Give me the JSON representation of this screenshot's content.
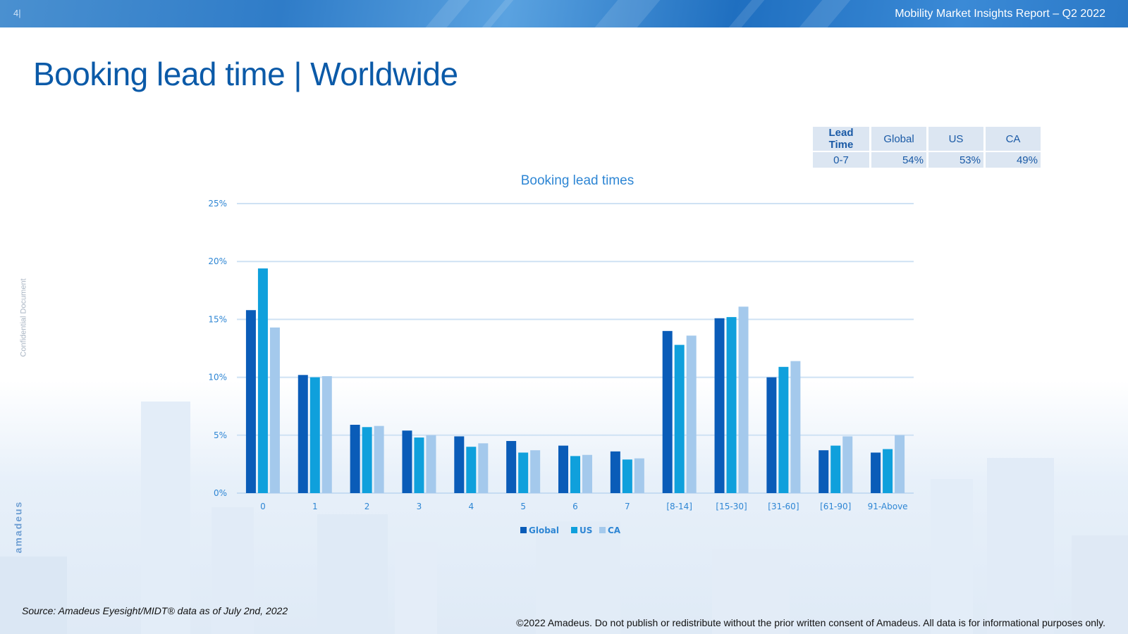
{
  "header": {
    "page_number": "4|",
    "report_title": "Mobility Market Insights Report – Q2 2022"
  },
  "slide_title": "Booking lead time | Worldwide",
  "side_label": "Confidential Document",
  "logo_text": "amadeus",
  "summary_table": {
    "headers": [
      "Lead Time",
      "Global",
      "US",
      "CA"
    ],
    "row": [
      "0-7",
      "54%",
      "53%",
      "49%"
    ]
  },
  "chart_data": {
    "type": "bar",
    "title": "Booking lead times",
    "categories": [
      "0",
      "1",
      "2",
      "3",
      "4",
      "5",
      "6",
      "7",
      "[8-14]",
      "[15-30]",
      "[31-60]",
      "[61-90]",
      "91-Above"
    ],
    "series": [
      {
        "name": "Global",
        "color": "#0a5cb8",
        "values": [
          15.8,
          10.2,
          5.9,
          5.4,
          4.9,
          4.5,
          4.1,
          3.6,
          14.0,
          15.1,
          10.0,
          3.7,
          3.5
        ]
      },
      {
        "name": "US",
        "color": "#0fa0dc",
        "values": [
          19.4,
          10.0,
          5.7,
          4.8,
          4.0,
          3.5,
          3.2,
          2.9,
          12.8,
          15.2,
          10.9,
          4.1,
          3.8
        ]
      },
      {
        "name": "CA",
        "color": "#a4c9ec",
        "values": [
          14.3,
          10.1,
          5.8,
          5.0,
          4.3,
          3.7,
          3.3,
          3.0,
          13.6,
          16.1,
          11.4,
          4.9,
          5.0
        ]
      }
    ],
    "ylim": [
      0,
      25
    ],
    "yticks": [
      "0%",
      "5%",
      "10%",
      "15%",
      "20%",
      "25%"
    ],
    "ytick_values": [
      0,
      5,
      10,
      15,
      20,
      25
    ],
    "xlabel": "",
    "ylabel": "",
    "grid": true,
    "legend": "bottom-center"
  },
  "footer": {
    "source": "Source: Amadeus Eyesight/MIDT® data as of July 2nd, 2022",
    "copyright": "©2022 Amadeus. Do not publish or redistribute without the prior written consent of Amadeus. All data is for informational purposes only."
  },
  "colors": {
    "brand_blue": "#0b5aa8",
    "axis_label": "#2e86d4",
    "gridline": "#cfe2f4"
  }
}
